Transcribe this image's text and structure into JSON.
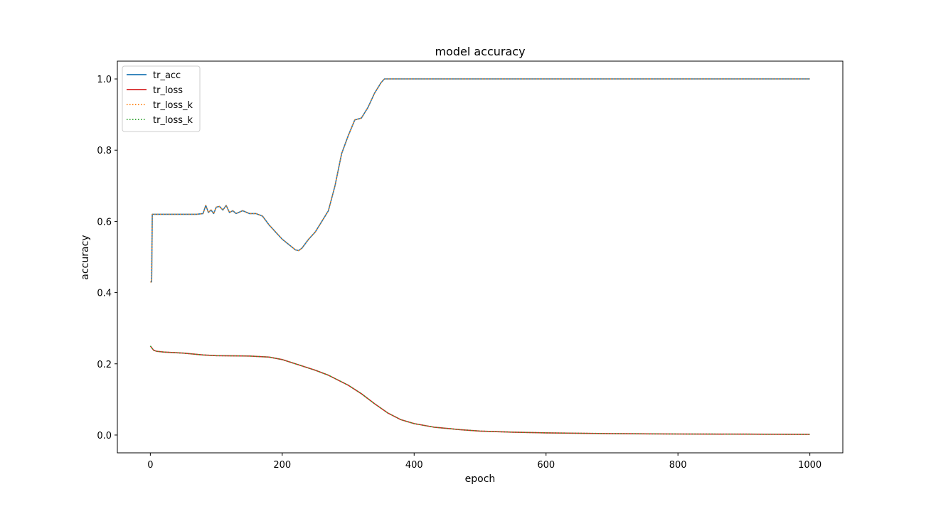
{
  "chart_data": {
    "type": "line",
    "title": "model accuracy",
    "xlabel": "epoch",
    "ylabel": "accuracy",
    "xlim": [
      -50,
      1050
    ],
    "ylim": [
      -0.05,
      1.05
    ],
    "xticks": [
      0,
      200,
      400,
      600,
      800,
      1000
    ],
    "yticks": [
      0.0,
      0.2,
      0.4,
      0.6,
      0.8,
      1.0
    ],
    "xtick_labels": [
      "0",
      "200",
      "400",
      "600",
      "800",
      "1000"
    ],
    "ytick_labels": [
      "0.0",
      "0.2",
      "0.4",
      "0.6",
      "0.8",
      "1.0"
    ],
    "grid": false,
    "legend_position": "upper-left",
    "series": [
      {
        "name": "tr_acc",
        "color": "#1f77b4",
        "style": "solid",
        "x": [
          0,
          2,
          3,
          70,
          80,
          84,
          88,
          92,
          96,
          100,
          105,
          110,
          115,
          120,
          125,
          130,
          140,
          150,
          160,
          170,
          180,
          190,
          200,
          210,
          220,
          225,
          230,
          240,
          250,
          260,
          270,
          280,
          290,
          300,
          310,
          320,
          330,
          340,
          350,
          355,
          360,
          370,
          400,
          500,
          600,
          700,
          800,
          900,
          1000
        ],
        "y": [
          0.43,
          0.43,
          0.62,
          0.62,
          0.622,
          0.645,
          0.625,
          0.632,
          0.622,
          0.64,
          0.642,
          0.632,
          0.645,
          0.625,
          0.63,
          0.622,
          0.63,
          0.622,
          0.622,
          0.615,
          0.59,
          0.57,
          0.55,
          0.535,
          0.52,
          0.518,
          0.525,
          0.55,
          0.57,
          0.6,
          0.63,
          0.7,
          0.79,
          0.84,
          0.885,
          0.89,
          0.92,
          0.96,
          0.99,
          1.0,
          1.0,
          1.0,
          1.0,
          1.0,
          1.0,
          1.0,
          1.0,
          1.0,
          1.0
        ]
      },
      {
        "name": "tr_loss",
        "color": "#d62728",
        "style": "solid",
        "x": [
          0,
          5,
          10,
          20,
          50,
          80,
          100,
          150,
          180,
          200,
          220,
          250,
          270,
          300,
          320,
          340,
          360,
          380,
          400,
          430,
          470,
          500,
          550,
          600,
          700,
          800,
          900,
          1000
        ],
        "y": [
          0.25,
          0.238,
          0.235,
          0.233,
          0.23,
          0.225,
          0.223,
          0.222,
          0.219,
          0.212,
          0.2,
          0.182,
          0.168,
          0.14,
          0.116,
          0.088,
          0.062,
          0.043,
          0.032,
          0.022,
          0.015,
          0.011,
          0.008,
          0.006,
          0.004,
          0.003,
          0.0025,
          0.002
        ]
      },
      {
        "name": "tr_loss_k",
        "color": "#ff7f0e",
        "style": "dotted",
        "x": [
          0,
          2,
          3,
          70,
          80,
          84,
          88,
          92,
          96,
          100,
          105,
          110,
          115,
          120,
          125,
          130,
          140,
          150,
          160,
          170,
          180,
          190,
          200,
          210,
          220,
          225,
          230,
          240,
          250,
          260,
          270,
          280,
          290,
          300,
          310,
          320,
          330,
          340,
          350,
          355,
          360,
          370,
          400,
          500,
          600,
          700,
          800,
          900,
          1000
        ],
        "y": [
          0.43,
          0.43,
          0.62,
          0.62,
          0.622,
          0.645,
          0.625,
          0.632,
          0.622,
          0.64,
          0.642,
          0.632,
          0.645,
          0.625,
          0.63,
          0.622,
          0.63,
          0.622,
          0.622,
          0.615,
          0.59,
          0.57,
          0.55,
          0.535,
          0.52,
          0.518,
          0.525,
          0.55,
          0.57,
          0.6,
          0.63,
          0.7,
          0.79,
          0.84,
          0.885,
          0.89,
          0.92,
          0.96,
          0.99,
          1.0,
          1.0,
          1.0,
          1.0,
          1.0,
          1.0,
          1.0,
          1.0,
          1.0,
          1.0
        ]
      },
      {
        "name": "tr_loss_k",
        "color": "#2ca02c",
        "style": "dotted",
        "x": [
          0,
          5,
          10,
          20,
          50,
          80,
          100,
          150,
          180,
          200,
          220,
          250,
          270,
          300,
          320,
          340,
          360,
          380,
          400,
          430,
          470,
          500,
          550,
          600,
          700,
          800,
          900,
          1000
        ],
        "y": [
          0.25,
          0.238,
          0.235,
          0.233,
          0.23,
          0.225,
          0.223,
          0.222,
          0.219,
          0.212,
          0.2,
          0.182,
          0.168,
          0.14,
          0.116,
          0.088,
          0.062,
          0.043,
          0.032,
          0.022,
          0.015,
          0.011,
          0.008,
          0.006,
          0.004,
          0.003,
          0.0025,
          0.002
        ]
      }
    ]
  }
}
